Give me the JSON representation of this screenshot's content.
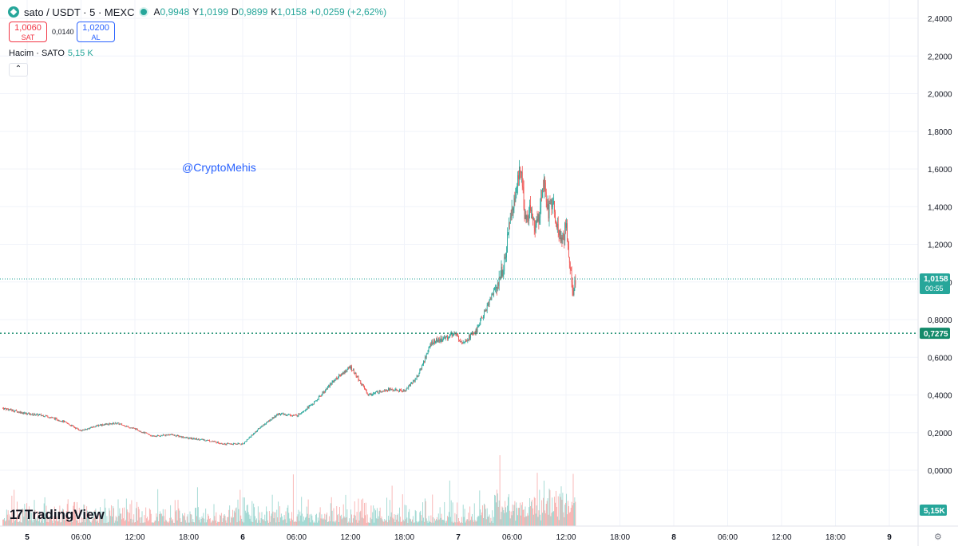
{
  "header": {
    "title": "sato / USDT · 5 · MEXC",
    "ohlc": [
      {
        "k": "A",
        "v": "0,9948"
      },
      {
        "k": "Y",
        "v": "1,0199"
      },
      {
        "k": "D",
        "v": "0,9899"
      },
      {
        "k": "K",
        "v": "1,0158"
      }
    ],
    "change": "+0,0259 (+2,62%)"
  },
  "trade": {
    "sell_price": "1,0060",
    "sell_label": "SAT",
    "spread": "0,0140",
    "buy_price": "1,0200",
    "buy_label": "AL"
  },
  "volume_legend": {
    "label": "Hacim · SATO",
    "value": "5,15 K"
  },
  "collapse_icon": "chevron-up-icon",
  "watermark": "@CryptoMehis",
  "brand": "TradingView",
  "colors": {
    "up": "#26a69a",
    "down": "#ef5350",
    "buy": "#2962ff",
    "sell": "#f23645"
  },
  "chart_data": {
    "type": "candlestick",
    "y_ticks": [
      "2,4000",
      "2,2000",
      "2,0000",
      "1,8000",
      "1,6000",
      "1,4000",
      "1,2000",
      "1,0000",
      "0,8000",
      "0,6000",
      "0,4000",
      "0,2000",
      "0,0000"
    ],
    "y_tick_values": [
      2.4,
      2.2,
      2.0,
      1.8,
      1.6,
      1.4,
      1.2,
      1.0,
      0.8,
      0.6,
      0.4,
      0.2,
      0.0
    ],
    "ylim": [
      -0.3,
      2.45
    ],
    "x_ticks": [
      "5",
      "06:00",
      "12:00",
      "18:00",
      "6",
      "06:00",
      "12:00",
      "18:00",
      "7",
      "06:00",
      "12:00",
      "18:00",
      "8",
      "06:00",
      "12:00",
      "18:00",
      "9"
    ],
    "x_tick_hours": [
      0,
      6,
      12,
      18,
      24,
      30,
      36,
      42,
      48,
      54,
      60,
      66,
      72,
      78,
      84,
      90,
      96
    ],
    "xlim_hours": [
      -2.7,
      103.5
    ],
    "last_price": {
      "value": 1.0158,
      "label": "1,0158",
      "countdown": "00:55"
    },
    "level_line": {
      "value": 0.7275,
      "label": "0,7275"
    },
    "volume_last_label": "5,15K",
    "close_series": {
      "x_hours": [
        -2.7,
        0,
        2,
        4,
        6,
        8,
        10,
        12,
        14,
        16,
        18,
        20,
        22,
        24,
        26,
        28,
        30,
        32,
        34,
        36,
        38,
        40,
        42,
        43.5,
        45,
        46.5,
        47.5,
        48.5,
        50,
        51.5,
        53,
        54,
        54.5,
        55,
        55.5,
        56,
        56.5,
        57,
        57.5,
        58,
        58.5,
        59,
        59.5,
        60,
        60.4,
        60.8,
        61.1
      ],
      "values": [
        0.33,
        0.3,
        0.29,
        0.26,
        0.21,
        0.24,
        0.25,
        0.22,
        0.18,
        0.19,
        0.17,
        0.16,
        0.14,
        0.14,
        0.23,
        0.3,
        0.29,
        0.36,
        0.47,
        0.55,
        0.4,
        0.43,
        0.42,
        0.5,
        0.68,
        0.7,
        0.73,
        0.68,
        0.74,
        0.9,
        1.07,
        1.4,
        1.5,
        1.62,
        1.3,
        1.38,
        1.28,
        1.35,
        1.55,
        1.38,
        1.42,
        1.3,
        1.2,
        1.3,
        1.12,
        0.94,
        1.0158
      ]
    }
  }
}
